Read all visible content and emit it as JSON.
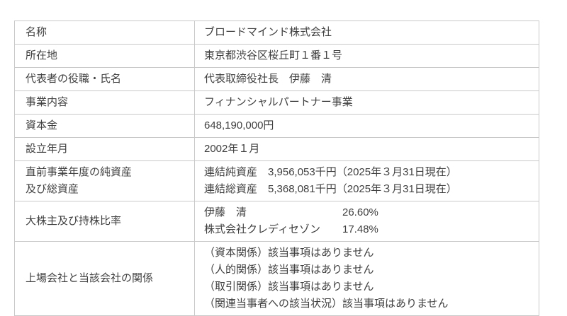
{
  "page": {
    "background_color": "#ffffff",
    "text_color": "#3f3f3f",
    "border_color": "#c9c9c9"
  },
  "table": {
    "rows": [
      {
        "label_lines": [
          "名称"
        ],
        "value_lines": [
          "ブロードマインド株式会社"
        ]
      },
      {
        "label_lines": [
          "所在地"
        ],
        "value_lines": [
          "東京都渋谷区桜丘町１番１号"
        ]
      },
      {
        "label_lines": [
          "代表者の役職・氏名"
        ],
        "value_lines": [
          "代表取締役社長　伊藤　清"
        ]
      },
      {
        "label_lines": [
          "事業内容"
        ],
        "value_lines": [
          "フィナンシャルパートナー事業"
        ]
      },
      {
        "label_lines": [
          "資本金"
        ],
        "value_lines": [
          "648,190,000円"
        ]
      },
      {
        "label_lines": [
          "設立年月"
        ],
        "value_lines": [
          "2002年１月"
        ]
      },
      {
        "label_lines": [
          "直前事業年度の純資産",
          "及び総資産"
        ],
        "value_lines": [
          "連結純資産　3,956,053千円（2025年３月31日現在）",
          "連結総資産　5,368,081千円（2025年３月31日現在）"
        ]
      },
      {
        "label_lines": [
          "大株主及び持株比率"
        ],
        "shareholders": [
          {
            "name": "伊藤　清",
            "ratio": "26.60%"
          },
          {
            "name": "株式会社クレディセゾン",
            "ratio": "17.48%"
          }
        ]
      },
      {
        "label_lines": [
          "上場会社と当該会社の関係"
        ],
        "value_lines": [
          "（資本関係）該当事項はありません",
          "（人的関係）該当事項はありません",
          "（取引関係）該当事項はありません",
          "（関連当事者への該当状況）該当事項はありません"
        ]
      }
    ]
  }
}
